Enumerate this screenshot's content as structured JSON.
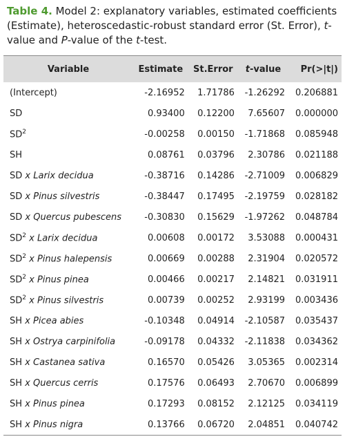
{
  "caption": {
    "label": "Table 4.",
    "parts": [
      {
        "text": " Model 2: explanatory variables, estimated coefficients (Estimate), heteroscedastic-robust standard error (St. Error), "
      },
      {
        "text": "t",
        "style": "italic"
      },
      {
        "text": "-value and "
      },
      {
        "text": "P",
        "style": "italic"
      },
      {
        "text": "-value of the "
      },
      {
        "text": "t",
        "style": "italic"
      },
      {
        "text": "-test."
      }
    ]
  },
  "table": {
    "header": [
      [
        {
          "text": "Variable"
        }
      ],
      [
        {
          "text": "Estimate"
        }
      ],
      [
        {
          "text": "St.Error"
        }
      ],
      [
        {
          "text": "t",
          "style": "italic"
        },
        {
          "text": "-value"
        }
      ],
      [
        {
          "text": "Pr(>|t|)"
        }
      ]
    ],
    "rows": [
      {
        "variable": [
          {
            "text": "(Intercept)"
          }
        ],
        "values": [
          "-2.16952",
          "1.71786",
          "-1.26292",
          "0.206881"
        ]
      },
      {
        "variable": [
          {
            "text": "SD"
          }
        ],
        "values": [
          "0.93400",
          "0.12200",
          "7.65607",
          "0.000000"
        ]
      },
      {
        "variable": [
          {
            "text": "SD"
          },
          {
            "text": "2",
            "style": "sup"
          }
        ],
        "values": [
          "-0.00258",
          "0.00150",
          "-1.71868",
          "0.085948"
        ]
      },
      {
        "variable": [
          {
            "text": "SH"
          }
        ],
        "values": [
          "0.08761",
          "0.03796",
          "2.30786",
          "0.021188"
        ]
      },
      {
        "variable": [
          {
            "text": "SD "
          },
          {
            "text": "x Larix decidua",
            "style": "italic"
          }
        ],
        "values": [
          "-0.38716",
          "0.14286",
          "-2.71009",
          "0.006829"
        ]
      },
      {
        "variable": [
          {
            "text": "SD "
          },
          {
            "text": "x Pinus silvestris",
            "style": "italic"
          }
        ],
        "values": [
          "-0.38447",
          "0.17495",
          "-2.19759",
          "0.028182"
        ]
      },
      {
        "variable": [
          {
            "text": "SD "
          },
          {
            "text": "x Quercus pubescens",
            "style": "italic"
          }
        ],
        "values": [
          "-0.30830",
          "0.15629",
          "-1.97262",
          "0.048784"
        ]
      },
      {
        "variable": [
          {
            "text": "SD"
          },
          {
            "text": "2",
            "style": "sup"
          },
          {
            "text": " "
          },
          {
            "text": "x Larix decidua",
            "style": "italic"
          }
        ],
        "values": [
          "0.00608",
          "0.00172",
          "3.53088",
          "0.000431"
        ]
      },
      {
        "variable": [
          {
            "text": "SD"
          },
          {
            "text": "2",
            "style": "sup"
          },
          {
            "text": " "
          },
          {
            "text": "x Pinus halepensis",
            "style": "italic"
          }
        ],
        "values": [
          "0.00669",
          "0.00288",
          "2.31904",
          "0.020572"
        ]
      },
      {
        "variable": [
          {
            "text": "SD"
          },
          {
            "text": "2",
            "style": "sup"
          },
          {
            "text": " "
          },
          {
            "text": "x Pinus pinea",
            "style": "italic"
          }
        ],
        "values": [
          "0.00466",
          "0.00217",
          "2.14821",
          "0.031911"
        ]
      },
      {
        "variable": [
          {
            "text": "SD"
          },
          {
            "text": "2",
            "style": "sup"
          },
          {
            "text": " "
          },
          {
            "text": "x Pinus silvestris",
            "style": "italic"
          }
        ],
        "values": [
          "0.00739",
          "0.00252",
          "2.93199",
          "0.003436"
        ]
      },
      {
        "variable": [
          {
            "text": "SH "
          },
          {
            "text": "x Picea abies",
            "style": "italic"
          }
        ],
        "values": [
          "-0.10348",
          "0.04914",
          "-2.10587",
          "0.035437"
        ]
      },
      {
        "variable": [
          {
            "text": "SH "
          },
          {
            "text": "x Ostrya carpinifolia",
            "style": "italic"
          }
        ],
        "values": [
          "-0.09178",
          "0.04332",
          "-2.11838",
          "0.034362"
        ]
      },
      {
        "variable": [
          {
            "text": "SH "
          },
          {
            "text": "x Castanea sativa",
            "style": "italic"
          }
        ],
        "values": [
          "0.16570",
          "0.05426",
          "3.05365",
          "0.002314"
        ]
      },
      {
        "variable": [
          {
            "text": "SH "
          },
          {
            "text": "x Quercus cerris",
            "style": "italic"
          }
        ],
        "values": [
          "0.17576",
          "0.06493",
          "2.70670",
          "0.006899"
        ]
      },
      {
        "variable": [
          {
            "text": "SH "
          },
          {
            "text": "x Pinus pinea",
            "style": "italic"
          }
        ],
        "values": [
          "0.17293",
          "0.08152",
          "2.12125",
          "0.034119"
        ]
      },
      {
        "variable": [
          {
            "text": "SH "
          },
          {
            "text": "x Pinus nigra",
            "style": "italic"
          }
        ],
        "values": [
          "0.13766",
          "0.06720",
          "2.04851",
          "0.040742"
        ]
      }
    ]
  }
}
